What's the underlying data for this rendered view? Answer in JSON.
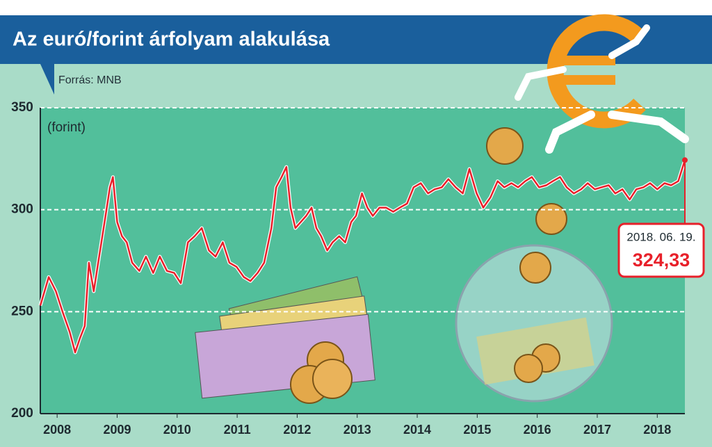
{
  "chart_data": {
    "type": "line",
    "title": "Az euró/forint árfolyam alakulása",
    "source": "Forrás: MNB",
    "y_label": "(forint)",
    "xlim": [
      2007.72,
      2018.46
    ],
    "xticks": [
      2008,
      2009,
      2010,
      2011,
      2012,
      2013,
      2014,
      2015,
      2016,
      2017,
      2018
    ],
    "ylim": [
      200,
      350
    ],
    "yticks": [
      200,
      250,
      300,
      350
    ],
    "grid": true,
    "series": [
      {
        "name": "EUR/HUF",
        "color": "#e8202a",
        "x": [
          2007.72,
          2007.86,
          2007.98,
          2008.09,
          2008.21,
          2008.3,
          2008.38,
          2008.46,
          2008.53,
          2008.61,
          2008.7,
          2008.79,
          2008.88,
          2008.93,
          2009.0,
          2009.08,
          2009.16,
          2009.25,
          2009.37,
          2009.48,
          2009.6,
          2009.71,
          2009.83,
          2009.95,
          2010.06,
          2010.18,
          2010.29,
          2010.41,
          2010.53,
          2010.64,
          2010.76,
          2010.87,
          2010.99,
          2011.11,
          2011.22,
          2011.34,
          2011.45,
          2011.57,
          2011.65,
          2011.74,
          2011.82,
          2011.89,
          2011.97,
          2012.06,
          2012.15,
          2012.24,
          2012.32,
          2012.4,
          2012.5,
          2012.59,
          2012.7,
          2012.8,
          2012.9,
          2012.98,
          2013.08,
          2013.17,
          2013.26,
          2013.37,
          2013.48,
          2013.6,
          2013.71,
          2013.83,
          2013.94,
          2014.06,
          2014.18,
          2014.29,
          2014.41,
          2014.52,
          2014.64,
          2014.76,
          2014.87,
          2014.99,
          2015.1,
          2015.22,
          2015.34,
          2015.45,
          2015.57,
          2015.68,
          2015.8,
          2015.91,
          2016.03,
          2016.15,
          2016.26,
          2016.38,
          2016.49,
          2016.61,
          2016.73,
          2016.84,
          2016.96,
          2017.07,
          2017.19,
          2017.3,
          2017.42,
          2017.54,
          2017.65,
          2017.77,
          2017.88,
          2018.0,
          2018.12,
          2018.23,
          2018.35,
          2018.46
        ],
        "values": [
          253,
          267,
          260,
          250,
          240,
          230,
          237,
          243,
          274,
          260,
          277,
          294,
          311,
          316,
          294,
          287,
          284,
          274,
          270,
          277,
          269,
          277,
          270,
          269,
          264,
          284,
          287,
          291,
          280,
          277,
          284,
          274,
          272,
          267,
          265,
          269,
          274,
          291,
          311,
          316,
          321,
          301,
          291,
          294,
          297,
          301,
          291,
          287,
          280,
          284,
          287,
          284,
          294,
          297,
          308,
          301,
          297,
          301,
          301,
          299,
          301,
          303,
          311,
          313,
          308,
          310,
          311,
          315,
          311,
          308,
          320,
          308,
          301,
          306,
          314,
          311,
          313,
          311,
          314,
          316,
          311,
          312,
          314,
          316,
          311,
          308,
          310,
          313,
          310,
          311,
          312,
          308,
          310,
          305,
          310,
          311,
          313,
          310,
          313,
          312,
          314,
          324.33
        ]
      }
    ],
    "annotation": {
      "date": "2018. 06. 19.",
      "value": 324.33,
      "label": "324,33"
    }
  }
}
